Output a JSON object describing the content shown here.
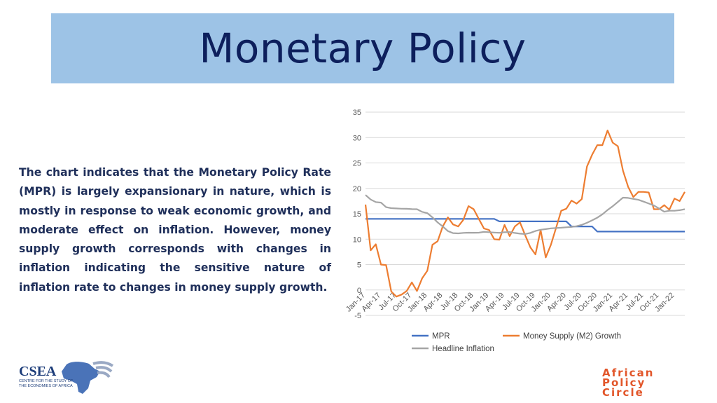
{
  "slide": {
    "title": "Monetary Policy",
    "description": "The chart indicates that the Monetary Policy Rate (MPR) is largely expansionary in nature, which is mostly in response to weak economic growth, and moderate effect on inflation. However, money supply growth corresponds with changes in inflation indicating the sensitive nature of inflation rate to changes in money supply growth."
  },
  "logos": {
    "csea_name": "CSEA",
    "csea_tagline_1": "CENTRE FOR THE STUDY OF",
    "csea_tagline_2": "THE ECONOMIES OF AFRICA",
    "apc_line1": "African",
    "apc_line2": "Policy",
    "apc_line3": "Circle"
  },
  "colors": {
    "mpr": "#4472c4",
    "m2": "#ed7d31",
    "inflation": "#a5a5a5",
    "title_band": "#9dc3e6",
    "title_text": "#0d1f5c",
    "apc_logo": "#e2562a"
  },
  "chart_data": {
    "type": "line",
    "title": "",
    "xlabel": "",
    "ylabel": "",
    "ylim": [
      -5,
      35
    ],
    "yticks": [
      -5,
      0,
      5,
      10,
      15,
      20,
      25,
      30,
      35
    ],
    "grid": true,
    "legend_position": "bottom",
    "x": [
      "Jan-17",
      "Feb-17",
      "Mar-17",
      "Apr-17",
      "May-17",
      "Jun-17",
      "Jul-17",
      "Aug-17",
      "Sep-17",
      "Oct-17",
      "Nov-17",
      "Dec-17",
      "Jan-18",
      "Feb-18",
      "Mar-18",
      "Apr-18",
      "May-18",
      "Jun-18",
      "Jul-18",
      "Aug-18",
      "Sep-18",
      "Oct-18",
      "Nov-18",
      "Dec-18",
      "Jan-19",
      "Feb-19",
      "Mar-19",
      "Apr-19",
      "May-19",
      "Jun-19",
      "Jul-19",
      "Aug-19",
      "Sep-19",
      "Oct-19",
      "Nov-19",
      "Dec-19",
      "Jan-20",
      "Feb-20",
      "Mar-20",
      "Apr-20",
      "May-20",
      "Jun-20",
      "Jul-20",
      "Aug-20",
      "Sep-20",
      "Oct-20",
      "Nov-20",
      "Dec-20",
      "Jan-21",
      "Feb-21",
      "Mar-21",
      "Apr-21",
      "May-21",
      "Jun-21",
      "Jul-21",
      "Aug-21",
      "Sep-21",
      "Oct-21",
      "Nov-21",
      "Dec-21",
      "Jan-22",
      "Feb-22",
      "Mar-22"
    ],
    "xtick_labels": [
      "Jan-17",
      "Apr-17",
      "Jul-17",
      "Oct-17",
      "Jan-18",
      "Apr-18",
      "Jul-18",
      "Oct-18",
      "Jan-19",
      "Apr-19",
      "Jul-19",
      "Oct-19",
      "Jan-20",
      "Apr-20",
      "Jul-20",
      "Oct-20",
      "Jan-21",
      "Apr-21",
      "Jul-21",
      "Oct-21",
      "Jan-22"
    ],
    "series": [
      {
        "name": "MPR",
        "values": [
          14,
          14,
          14,
          14,
          14,
          14,
          14,
          14,
          14,
          14,
          14,
          14,
          14,
          14,
          14,
          14,
          14,
          14,
          14,
          14,
          14,
          14,
          14,
          14,
          14,
          14,
          13.5,
          13.5,
          13.5,
          13.5,
          13.5,
          13.5,
          13.5,
          13.5,
          13.5,
          13.5,
          13.5,
          13.5,
          13.5,
          13.5,
          12.5,
          12.5,
          12.5,
          12.5,
          12.5,
          11.5,
          11.5,
          11.5,
          11.5,
          11.5,
          11.5,
          11.5,
          11.5,
          11.5,
          11.5,
          11.5,
          11.5,
          11.5,
          11.5,
          11.5,
          11.5,
          11.5,
          11.5
        ]
      },
      {
        "name": "Money Supply (M2) Growth",
        "values": [
          16.8,
          7.8,
          9,
          5,
          4.9,
          -0.3,
          -1.3,
          -0.9,
          -0.2,
          1.5,
          -0.2,
          2.3,
          3.8,
          8.9,
          9.6,
          12.5,
          14.3,
          12.9,
          12.5,
          13.8,
          16.5,
          15.9,
          14,
          12.1,
          11.8,
          10,
          9.9,
          12.8,
          10.6,
          12.5,
          13.3,
          10.8,
          8.4,
          7,
          11.8,
          6.4,
          8.9,
          12.2,
          15.6,
          16,
          17.6,
          17,
          17.9,
          24.3,
          26.6,
          28.5,
          28.5,
          31.4,
          29,
          28.3,
          23.5,
          20.3,
          18.3,
          19.3,
          19.3,
          19.2,
          15.9,
          15.9,
          16.7,
          15.8,
          18,
          17.5,
          19.3
        ]
      },
      {
        "name": "Headline Inflation",
        "values": [
          18.7,
          17.8,
          17.3,
          17.2,
          16.3,
          16.1,
          16.05,
          16,
          15.98,
          15.91,
          15.9,
          15.37,
          15.13,
          14.3,
          13.3,
          12.5,
          11.6,
          11.2,
          11.14,
          11.23,
          11.28,
          11.26,
          11.28,
          11.44,
          11.37,
          11.31,
          11.25,
          11.37,
          11.4,
          11.22,
          11.08,
          11.02,
          11.24,
          11.61,
          11.85,
          11.98,
          12.13,
          12.2,
          12.26,
          12.34,
          12.4,
          12.56,
          12.82,
          13.22,
          13.71,
          14.23,
          14.89,
          15.75,
          16.47,
          17.33,
          18.17,
          18.12,
          17.93,
          17.75,
          17.38,
          17.01,
          16.63,
          16.05,
          15.4,
          15.6,
          15.6,
          15.7,
          15.9
        ]
      }
    ]
  }
}
